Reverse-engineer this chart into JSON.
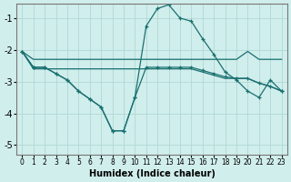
{
  "title": "",
  "xlabel": "Humidex (Indice chaleur)",
  "ylabel": "",
  "bg_color": "#d0eeec",
  "grid_color": "#b0d8d5",
  "line_color": "#1a7070",
  "xlim": [
    -0.5,
    23.5
  ],
  "ylim": [
    -5.3,
    -0.55
  ],
  "yticks": [
    -5,
    -4,
    -3,
    -2,
    -1
  ],
  "xticks": [
    0,
    1,
    2,
    3,
    4,
    5,
    6,
    7,
    8,
    9,
    10,
    11,
    12,
    13,
    14,
    15,
    16,
    17,
    18,
    19,
    20,
    21,
    22,
    23
  ],
  "lines": [
    {
      "x": [
        0,
        1,
        3,
        10,
        11,
        12,
        13,
        14,
        15,
        16,
        17,
        18,
        19,
        20,
        21,
        22,
        23
      ],
      "y": [
        -2.05,
        -2.3,
        -2.3,
        -2.3,
        -2.3,
        -2.3,
        -2.3,
        -2.3,
        -2.3,
        -2.3,
        -2.3,
        -2.3,
        -2.3,
        -2.05,
        -2.3,
        -2.3,
        -2.3
      ],
      "marker": false
    },
    {
      "x": [
        0,
        1,
        3,
        10,
        11,
        12,
        13,
        14,
        15,
        16,
        17,
        18,
        19,
        20,
        21,
        22,
        23
      ],
      "y": [
        -2.05,
        -2.6,
        -2.6,
        -2.6,
        -2.6,
        -2.6,
        -2.6,
        -2.6,
        -2.6,
        -2.7,
        -2.8,
        -2.9,
        -2.9,
        -2.9,
        -3.05,
        -3.15,
        -3.3
      ],
      "marker": false
    },
    {
      "x": [
        0,
        1,
        2,
        3,
        4,
        5,
        6,
        7,
        8,
        9,
        10,
        11,
        12,
        13,
        14,
        15,
        16,
        17,
        18,
        19,
        20,
        21,
        22,
        23
      ],
      "y": [
        -2.05,
        -2.55,
        -2.55,
        -2.75,
        -2.95,
        -3.3,
        -3.55,
        -3.8,
        -4.55,
        -4.55,
        -3.5,
        -2.55,
        -2.55,
        -2.55,
        -2.55,
        -2.55,
        -2.65,
        -2.75,
        -2.85,
        -2.9,
        -2.9,
        -3.05,
        -3.15,
        -3.3
      ],
      "marker": true
    },
    {
      "x": [
        0,
        1,
        2,
        3,
        4,
        5,
        6,
        7,
        8,
        9,
        10,
        11,
        12,
        13,
        14,
        15,
        16,
        17,
        18,
        19,
        20,
        21,
        22,
        23
      ],
      "y": [
        -2.05,
        -2.55,
        -2.55,
        -2.75,
        -2.95,
        -3.3,
        -3.55,
        -3.8,
        -4.55,
        -4.55,
        -3.5,
        -1.25,
        -0.7,
        -0.58,
        -1.0,
        -1.1,
        -1.65,
        -2.15,
        -2.7,
        -2.95,
        -3.3,
        -3.5,
        -2.95,
        -3.3
      ],
      "marker": true
    }
  ]
}
